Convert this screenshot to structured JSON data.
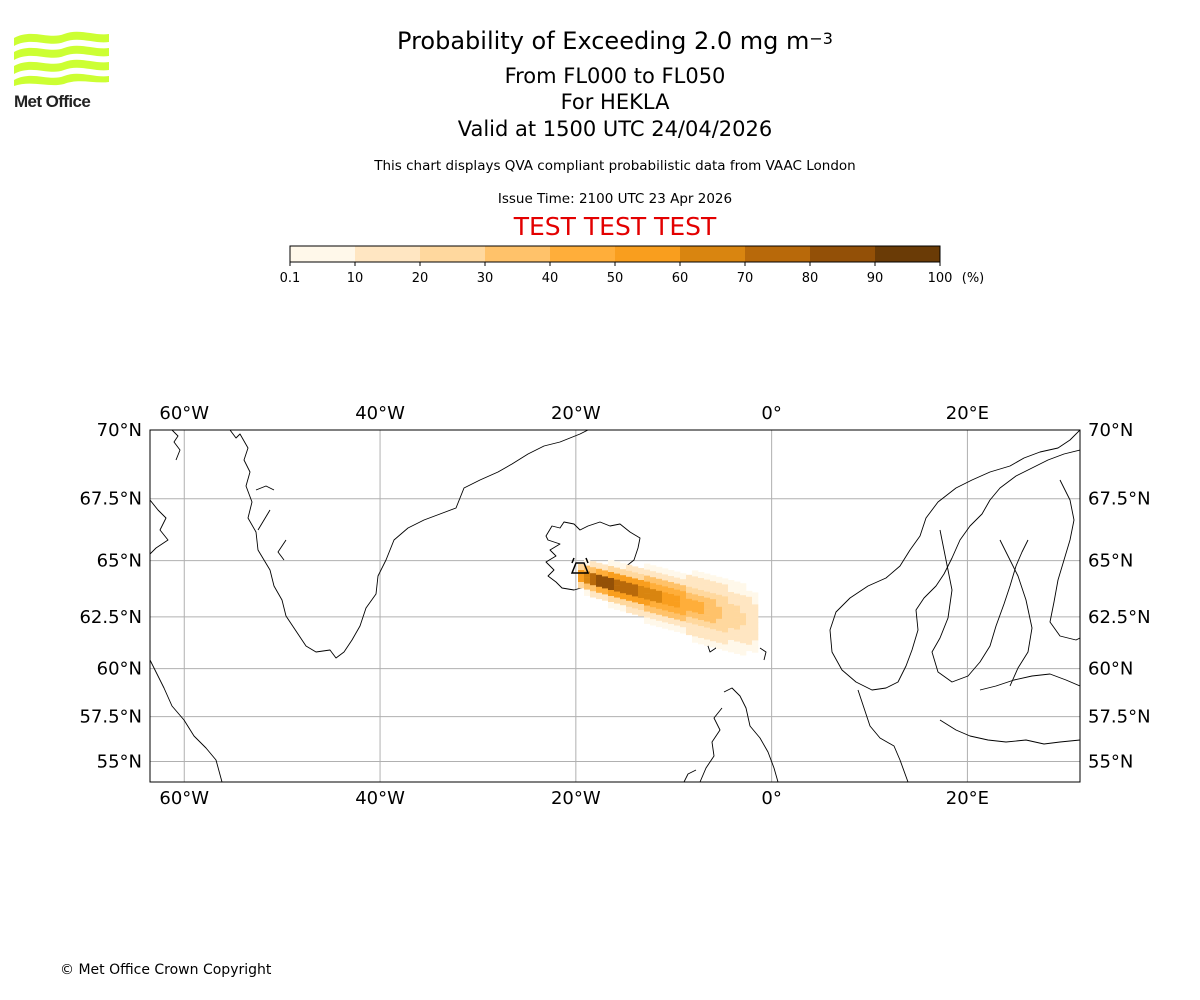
{
  "header": {
    "title_main": "Probability of Exceeding 2.0 mg m",
    "title_sup": "−3",
    "subtitle_levels": "From FL000 to FL050",
    "subtitle_volcano": "For HEKLA",
    "subtitle_valid": "Valid at 1500 UTC 24/04/2026",
    "note": "This chart displays QVA compliant probabilistic data from VAAC London",
    "issue_time": "Issue Time: 2100 UTC 23 Apr 2026",
    "test_banner": "TEST TEST TEST"
  },
  "logo": {
    "text": "Met Office",
    "color": "#ccff33"
  },
  "colorbar": {
    "tick_labels": [
      "0.1",
      "10",
      "20",
      "30",
      "40",
      "50",
      "60",
      "70",
      "80",
      "90",
      "100"
    ],
    "unit": "(%)",
    "colors": [
      "#fff8ea",
      "#ffe6c2",
      "#ffd89e",
      "#ffc26a",
      "#ffae3a",
      "#f99e1e",
      "#d98510",
      "#b8690a",
      "#935007",
      "#6a3b06"
    ]
  },
  "map": {
    "lon_labels": [
      "60°W",
      "40°W",
      "20°W",
      "0°",
      "20°E"
    ],
    "lat_labels": [
      "70°N",
      "67.5°N",
      "65°N",
      "62.5°N",
      "60°N",
      "57.5°N",
      "55°N"
    ],
    "lon_ticks": [
      -60,
      -40,
      -20,
      0,
      20
    ],
    "lat_ticks": [
      70,
      67.5,
      65,
      62.5,
      60,
      57.5,
      55
    ],
    "extent": {
      "lon_min": -63.5,
      "lon_max": 31.5,
      "lat_min": 53.8,
      "lat_max": 70
    },
    "volcano": {
      "name": "HEKLA",
      "lon": -19.7,
      "lat": 64.0
    },
    "plume_color_ref": "#ffae3a"
  },
  "footer": {
    "copyright": "© Met Office Crown Copyright"
  }
}
